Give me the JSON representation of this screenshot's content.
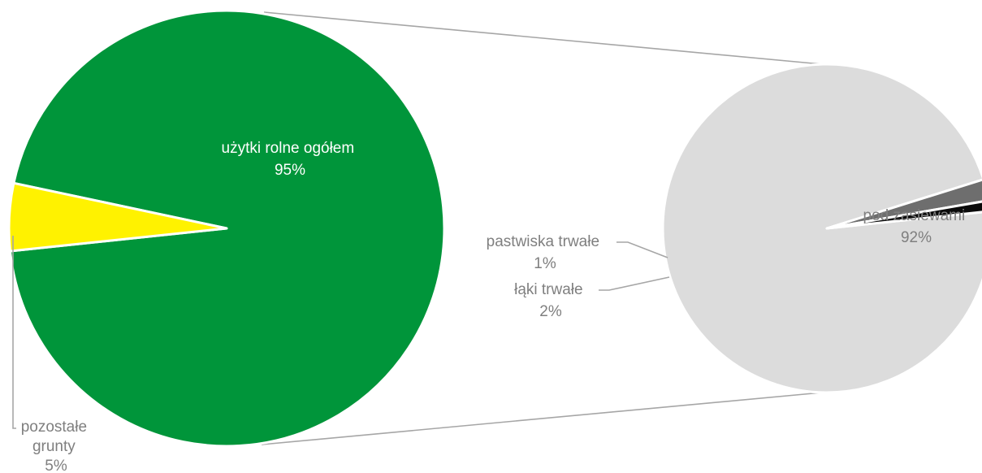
{
  "chart_data": {
    "type": "pie",
    "subtype": "pie-of-pie",
    "primary": {
      "slices": [
        {
          "label": "użytki rolne ogółem",
          "percent_label": "95%",
          "value": 95,
          "color": "#00953A",
          "label_color": "#FFFFFF"
        },
        {
          "label_lines": [
            "pozostałe",
            "grunty"
          ],
          "percent_label": "5%",
          "value": 5,
          "color": "#FFF200",
          "label_color": "#7F7F7F"
        }
      ]
    },
    "secondary": {
      "slices": [
        {
          "label": "pod zasiewami",
          "percent_label": "92%",
          "value": 92,
          "color": "#DCDCDC",
          "label_color": "#7F7F7F"
        },
        {
          "label": "pastwiska trwałe",
          "percent_label": "1%",
          "value": 1,
          "color": "#0A0A0A",
          "label_color": "#7F7F7F"
        },
        {
          "label": "łąki trwałe",
          "percent_label": "2%",
          "value": 2,
          "color": "#6E6E6E",
          "label_color": "#7F7F7F"
        }
      ]
    },
    "connector_color": "#A6A6A6",
    "leader_color": "#A6A6A6"
  }
}
